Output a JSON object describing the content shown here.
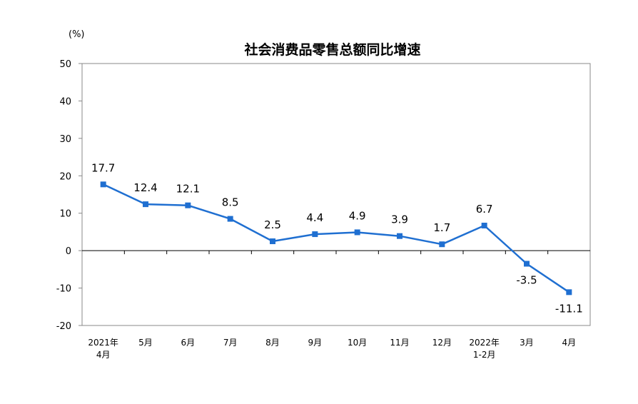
{
  "chart_data": {
    "type": "line",
    "title": "社会消费品零售总额同比增速",
    "unit_label": "(%)",
    "categories": [
      [
        "2021年",
        "4月"
      ],
      [
        "5月"
      ],
      [
        "6月"
      ],
      [
        "7月"
      ],
      [
        "8月"
      ],
      [
        "9月"
      ],
      [
        "10月"
      ],
      [
        "11月"
      ],
      [
        "12月"
      ],
      [
        "2022年",
        "1-2月"
      ],
      [
        "3月"
      ],
      [
        "4月"
      ]
    ],
    "values": [
      17.7,
      12.4,
      12.1,
      8.5,
      2.5,
      4.4,
      4.9,
      3.9,
      1.7,
      6.7,
      -3.5,
      -11.1
    ],
    "data_labels": [
      "17.7",
      "12.4",
      "12.1",
      "8.5",
      "2.5",
      "4.4",
      "4.9",
      "3.9",
      "1.7",
      "6.7",
      "-3.5",
      "-11.1"
    ],
    "ylim": [
      -20,
      50
    ],
    "yticks": [
      -20,
      -10,
      0,
      10,
      20,
      30,
      40,
      50
    ],
    "ytick_labels": [
      "-20",
      "-10",
      "0",
      "10",
      "20",
      "30",
      "40",
      "50"
    ],
    "grid": false,
    "legend": "none",
    "line_color": "#1f6fd1",
    "marker": "square"
  }
}
